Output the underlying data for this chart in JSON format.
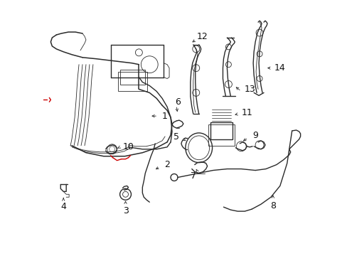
{
  "background_color": "#ffffff",
  "fig_width": 4.89,
  "fig_height": 3.6,
  "dpi": 100,
  "line_color": "#2a2a2a",
  "red_color": "#cc0000",
  "lw": 0.9,
  "tlw": 0.6
}
